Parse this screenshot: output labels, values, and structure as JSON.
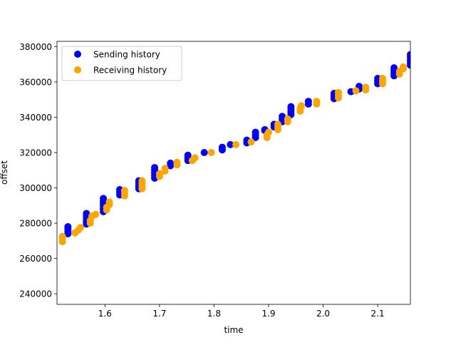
{
  "chart_data": {
    "type": "scatter",
    "title": "",
    "xlabel": "time",
    "ylabel": "offset",
    "xlim": [
      1.512,
      2.16
    ],
    "ylim": [
      234000,
      383000
    ],
    "x_ticks": [
      1.6,
      1.7,
      1.8,
      1.9,
      2.0,
      2.1
    ],
    "x_tick_labels": [
      "1.6",
      "1.7",
      "1.8",
      "1.9",
      "2.0",
      "2.1"
    ],
    "y_ticks": [
      240000,
      260000,
      280000,
      300000,
      320000,
      340000,
      360000,
      380000
    ],
    "y_tick_labels": [
      "240000",
      "260000",
      "280000",
      "300000",
      "320000",
      "340000",
      "360000",
      "380000"
    ],
    "grid": false,
    "legend_position": "top-left",
    "series": [
      {
        "name": "Sending history",
        "color": "#0000ff",
        "points": [
          [
            1.532,
            274000
          ],
          [
            1.532,
            275500
          ],
          [
            1.532,
            277000
          ],
          [
            1.532,
            278000
          ],
          [
            1.566,
            279500
          ],
          [
            1.566,
            281000
          ],
          [
            1.566,
            282500
          ],
          [
            1.566,
            284000
          ],
          [
            1.566,
            285500
          ],
          [
            1.597,
            286500
          ],
          [
            1.597,
            288000
          ],
          [
            1.597,
            289500
          ],
          [
            1.597,
            291000
          ],
          [
            1.597,
            292500
          ],
          [
            1.597,
            294000
          ],
          [
            1.627,
            296000
          ],
          [
            1.627,
            297500
          ],
          [
            1.627,
            299000
          ],
          [
            1.662,
            299500
          ],
          [
            1.662,
            301000
          ],
          [
            1.662,
            302500
          ],
          [
            1.662,
            304000
          ],
          [
            1.691,
            305500
          ],
          [
            1.691,
            307000
          ],
          [
            1.691,
            308500
          ],
          [
            1.691,
            310000
          ],
          [
            1.691,
            311500
          ],
          [
            1.72,
            312500
          ],
          [
            1.72,
            314000
          ],
          [
            1.752,
            315500
          ],
          [
            1.752,
            317000
          ],
          [
            1.752,
            318500
          ],
          [
            1.782,
            320000
          ],
          [
            1.815,
            321500
          ],
          [
            1.815,
            323000
          ],
          [
            1.83,
            324500
          ],
          [
            1.86,
            325500
          ],
          [
            1.86,
            327000
          ],
          [
            1.876,
            328500
          ],
          [
            1.876,
            330000
          ],
          [
            1.876,
            331500
          ],
          [
            1.893,
            332500
          ],
          [
            1.893,
            333000
          ],
          [
            1.91,
            334500
          ],
          [
            1.91,
            336000
          ],
          [
            1.925,
            337500
          ],
          [
            1.925,
            339000
          ],
          [
            1.925,
            340500
          ],
          [
            1.941,
            341500
          ],
          [
            1.941,
            343000
          ],
          [
            1.941,
            344500
          ],
          [
            1.941,
            346000
          ],
          [
            1.973,
            347500
          ],
          [
            1.973,
            349000
          ],
          [
            2.02,
            350500
          ],
          [
            2.02,
            352000
          ],
          [
            2.02,
            353500
          ],
          [
            2.051,
            354500
          ],
          [
            2.066,
            356000
          ],
          [
            2.066,
            357500
          ],
          [
            2.1,
            359000
          ],
          [
            2.1,
            360500
          ],
          [
            2.1,
            362000
          ],
          [
            2.13,
            363500
          ],
          [
            2.13,
            365000
          ],
          [
            2.13,
            366500
          ],
          [
            2.13,
            368000
          ],
          [
            2.16,
            369500
          ],
          [
            2.16,
            371000
          ],
          [
            2.16,
            372500
          ],
          [
            2.16,
            374000
          ],
          [
            2.16,
            375500
          ]
        ]
      },
      {
        "name": "Receiving history",
        "color": "#ffa500",
        "points": [
          [
            1.522,
            269500
          ],
          [
            1.522,
            271000
          ],
          [
            1.522,
            272500
          ],
          [
            1.545,
            274500
          ],
          [
            1.551,
            276000
          ],
          [
            1.555,
            277500
          ],
          [
            1.573,
            280000
          ],
          [
            1.573,
            281500
          ],
          [
            1.576,
            284000
          ],
          [
            1.583,
            285000
          ],
          [
            1.603,
            287500
          ],
          [
            1.603,
            289000
          ],
          [
            1.608,
            290500
          ],
          [
            1.608,
            292000
          ],
          [
            1.636,
            295500
          ],
          [
            1.636,
            297000
          ],
          [
            1.636,
            298500
          ],
          [
            1.668,
            299500
          ],
          [
            1.668,
            301000
          ],
          [
            1.668,
            302500
          ],
          [
            1.668,
            304000
          ],
          [
            1.7,
            306500
          ],
          [
            1.7,
            308000
          ],
          [
            1.71,
            309500
          ],
          [
            1.71,
            311000
          ],
          [
            1.732,
            313000
          ],
          [
            1.732,
            314500
          ],
          [
            1.76,
            315500
          ],
          [
            1.765,
            317000
          ],
          [
            1.795,
            320000
          ],
          [
            1.84,
            324500
          ],
          [
            1.868,
            326000
          ],
          [
            1.897,
            328500
          ],
          [
            1.897,
            330000
          ],
          [
            1.9,
            331500
          ],
          [
            1.917,
            333000
          ],
          [
            1.917,
            334500
          ],
          [
            1.917,
            336000
          ],
          [
            1.935,
            337500
          ],
          [
            1.935,
            339000
          ],
          [
            1.958,
            343500
          ],
          [
            1.958,
            345000
          ],
          [
            1.96,
            346500
          ],
          [
            1.988,
            347500
          ],
          [
            1.988,
            349000
          ],
          [
            2.028,
            351000
          ],
          [
            2.028,
            352500
          ],
          [
            2.028,
            354000
          ],
          [
            2.06,
            355000
          ],
          [
            2.078,
            355500
          ],
          [
            2.078,
            357000
          ],
          [
            2.109,
            359000
          ],
          [
            2.109,
            360500
          ],
          [
            2.109,
            362000
          ],
          [
            2.14,
            364500
          ],
          [
            2.14,
            366000
          ],
          [
            2.147,
            367500
          ],
          [
            2.147,
            368500
          ]
        ]
      }
    ]
  }
}
